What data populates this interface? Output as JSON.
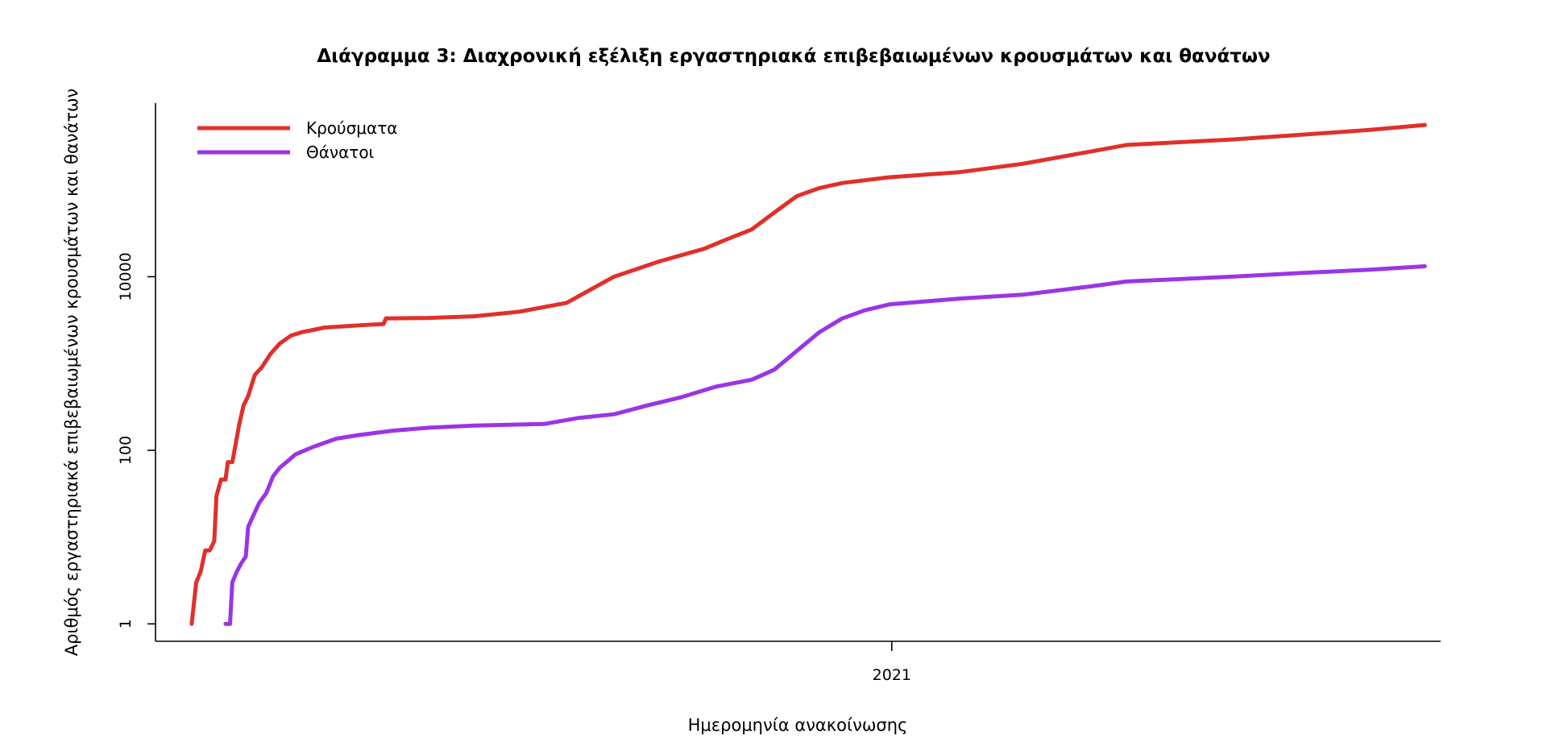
{
  "chart_data": {
    "type": "line",
    "title": "Διάγραμμα 3: Διαχρονική εξέλιξη εργαστηριακά επιβεβαιωμένων κρουσμάτων και θανάτων",
    "xlabel": "Ημερομηνία ανακοίνωσης",
    "ylabel": "Αριθμός εργαστηριακά επιβεβαιωμένων κρουσμάτων και θανάτων",
    "y_scale": "log10",
    "ylim": [
      0.63,
      1000000
    ],
    "y_ticks": [
      {
        "value": 1,
        "label": "1"
      },
      {
        "value": 100,
        "label": "100"
      },
      {
        "value": 10000,
        "label": "10000"
      }
    ],
    "x_type": "date",
    "xlim": [
      "2020-02-10",
      "2021-09-01"
    ],
    "x_ticks": [
      {
        "value": "2021-01-01",
        "label": "2021"
      }
    ],
    "grid": false,
    "legend_position": "top-left",
    "series": [
      {
        "name": "Κρούσματα",
        "color": "#e0302a",
        "points": [
          [
            "2020-02-26",
            1
          ],
          [
            "2020-02-28",
            3
          ],
          [
            "2020-03-01",
            4
          ],
          [
            "2020-03-03",
            7
          ],
          [
            "2020-03-05",
            7
          ],
          [
            "2020-03-07",
            9
          ],
          [
            "2020-03-08",
            30
          ],
          [
            "2020-03-10",
            46
          ],
          [
            "2020-03-12",
            46
          ],
          [
            "2020-03-13",
            73
          ],
          [
            "2020-03-15",
            73
          ],
          [
            "2020-03-16",
            100
          ],
          [
            "2020-03-18",
            195
          ],
          [
            "2020-03-20",
            330
          ],
          [
            "2020-03-22",
            420
          ],
          [
            "2020-03-25",
            740
          ],
          [
            "2020-03-28",
            900
          ],
          [
            "2020-04-01",
            1300
          ],
          [
            "2020-04-05",
            1700
          ],
          [
            "2020-04-10",
            2100
          ],
          [
            "2020-04-15",
            2300
          ],
          [
            "2020-04-25",
            2600
          ],
          [
            "2020-05-05",
            2700
          ],
          [
            "2020-05-15",
            2800
          ],
          [
            "2020-05-21",
            2850
          ],
          [
            "2020-05-22",
            3300
          ],
          [
            "2020-06-10",
            3350
          ],
          [
            "2020-06-30",
            3500
          ],
          [
            "2020-07-20",
            3950
          ],
          [
            "2020-08-10",
            5000
          ],
          [
            "2020-08-31",
            10000
          ],
          [
            "2020-09-20",
            15000
          ],
          [
            "2020-10-10",
            21000
          ],
          [
            "2020-10-20",
            27000
          ],
          [
            "2020-10-31",
            35000
          ],
          [
            "2020-11-10",
            55000
          ],
          [
            "2020-11-20",
            85000
          ],
          [
            "2020-11-30",
            105000
          ],
          [
            "2020-12-10",
            120000
          ],
          [
            "2020-12-31",
            140000
          ],
          [
            "2021-01-31",
            160000
          ],
          [
            "2021-02-28",
            200000
          ],
          [
            "2021-03-31",
            280000
          ],
          [
            "2021-04-15",
            330000
          ],
          [
            "2021-05-31",
            380000
          ],
          [
            "2021-06-30",
            430000
          ],
          [
            "2021-07-31",
            490000
          ],
          [
            "2021-08-25",
            560000
          ]
        ]
      },
      {
        "name": "Θάνατοι",
        "color": "#9a35e6",
        "points": [
          [
            "2020-03-12",
            1
          ],
          [
            "2020-03-14",
            1
          ],
          [
            "2020-03-15",
            3
          ],
          [
            "2020-03-17",
            4
          ],
          [
            "2020-03-19",
            5
          ],
          [
            "2020-03-21",
            6
          ],
          [
            "2020-03-22",
            13
          ],
          [
            "2020-03-24",
            17
          ],
          [
            "2020-03-27",
            25
          ],
          [
            "2020-03-30",
            32
          ],
          [
            "2020-04-02",
            50
          ],
          [
            "2020-04-05",
            63
          ],
          [
            "2020-04-08",
            73
          ],
          [
            "2020-04-12",
            90
          ],
          [
            "2020-04-20",
            110
          ],
          [
            "2020-04-30",
            136
          ],
          [
            "2020-05-10",
            150
          ],
          [
            "2020-05-25",
            168
          ],
          [
            "2020-06-10",
            182
          ],
          [
            "2020-06-30",
            193
          ],
          [
            "2020-07-31",
            201
          ],
          [
            "2020-08-15",
            235
          ],
          [
            "2020-08-31",
            260
          ],
          [
            "2020-09-15",
            330
          ],
          [
            "2020-09-30",
            410
          ],
          [
            "2020-10-15",
            540
          ],
          [
            "2020-10-31",
            650
          ],
          [
            "2020-11-10",
            850
          ],
          [
            "2020-11-20",
            1400
          ],
          [
            "2020-11-30",
            2300
          ],
          [
            "2020-12-10",
            3300
          ],
          [
            "2020-12-20",
            4100
          ],
          [
            "2020-12-31",
            4800
          ],
          [
            "2021-01-31",
            5600
          ],
          [
            "2021-02-28",
            6200
          ],
          [
            "2021-03-31",
            7800
          ],
          [
            "2021-04-15",
            8800
          ],
          [
            "2021-05-31",
            10000
          ],
          [
            "2021-06-30",
            11000
          ],
          [
            "2021-07-31",
            12000
          ],
          [
            "2021-08-25",
            13200
          ]
        ]
      }
    ]
  }
}
